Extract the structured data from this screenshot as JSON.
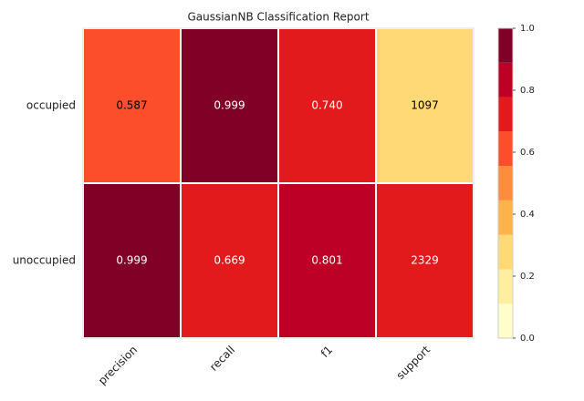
{
  "chart_data": {
    "type": "heatmap",
    "title": "GaussianNB Classification Report",
    "rows": [
      "occupied",
      "unoccupied"
    ],
    "columns": [
      "precision",
      "recall",
      "f1",
      "support"
    ],
    "values": [
      [
        0.587,
        0.999,
        0.74,
        1097
      ],
      [
        0.999,
        0.669,
        0.801,
        2329
      ]
    ],
    "value_labels": [
      [
        "0.587",
        "0.999",
        "0.740",
        "1097"
      ],
      [
        "0.999",
        "0.669",
        "0.801",
        "2329"
      ]
    ],
    "colors": [
      [
        "#fc4e2a",
        "#800026",
        "#e31a1c",
        "#fed976"
      ],
      [
        "#800026",
        "#e31a1c",
        "#bd0026",
        "#e31a1c"
      ]
    ],
    "label_colors": [
      [
        "#000000",
        "#ffffff",
        "#ffffff",
        "#000000"
      ],
      [
        "#ffffff",
        "#ffffff",
        "#ffffff",
        "#ffffff"
      ]
    ],
    "colorbar_colors": [
      "#ffffcc",
      "#ffeda0",
      "#fed976",
      "#feb24c",
      "#fd8d3c",
      "#fc4e2a",
      "#e31a1c",
      "#bd0026",
      "#800026"
    ],
    "clim": [
      0,
      1
    ],
    "cticks": [
      {
        "value": 0,
        "label": "0.0"
      },
      {
        "value": 0.2,
        "label": "0.2"
      },
      {
        "value": 0.4,
        "label": "0.4"
      },
      {
        "value": 0.6,
        "label": "0.6"
      },
      {
        "value": 0.8,
        "label": "0.8"
      },
      {
        "value": 1,
        "label": "1.0"
      }
    ]
  }
}
